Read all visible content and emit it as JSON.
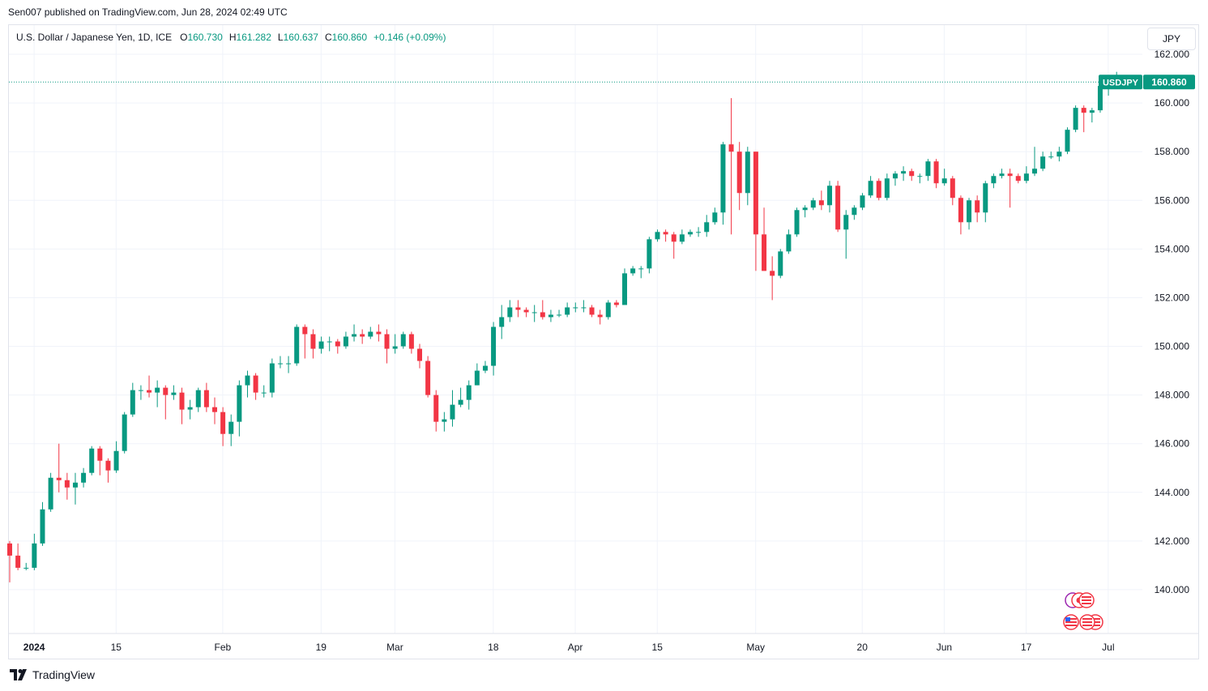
{
  "header": {
    "published": "Sen007 published on TradingView.com, Jun 28, 2024 02:49 UTC"
  },
  "legend": {
    "symbol": "U.S. Dollar / Japanese Yen, 1D, ICE",
    "o_label": "O",
    "o_value": "160.730",
    "h_label": "H",
    "h_value": "161.282",
    "l_label": "L",
    "l_value": "160.637",
    "c_label": "C",
    "c_value": "160.860",
    "change": "+0.146 (+0.09%)"
  },
  "currency_button": "JPY",
  "price_tag": {
    "symbol": "USDJPY",
    "price": "160.860"
  },
  "brand": {
    "name": "TradingView"
  },
  "colors": {
    "up": "#089981",
    "down": "#f23645",
    "grid": "#f0f3fa",
    "text": "#131722"
  },
  "chart_data": {
    "type": "candlestick",
    "title": "U.S. Dollar / Japanese Yen, 1D, ICE",
    "ylim": [
      138.2,
      163.2
    ],
    "y_ticks": [
      "140.000",
      "142.000",
      "144.000",
      "146.000",
      "148.000",
      "150.000",
      "152.000",
      "154.000",
      "156.000",
      "158.000",
      "160.000",
      "162.000"
    ],
    "x_ticks": [
      {
        "label": "2024",
        "bold": true,
        "index": 1
      },
      {
        "label": "15",
        "index": 11
      },
      {
        "label": "Feb",
        "index": 24
      },
      {
        "label": "19",
        "index": 36
      },
      {
        "label": "Mar",
        "index": 45
      },
      {
        "label": "18",
        "index": 57
      },
      {
        "label": "Apr",
        "index": 67
      },
      {
        "label": "15",
        "index": 77
      },
      {
        "label": "May",
        "index": 89
      },
      {
        "label": "20",
        "index": 102
      },
      {
        "label": "Jun",
        "index": 112
      },
      {
        "label": "17",
        "index": 122
      },
      {
        "label": "Jul",
        "index": 132
      }
    ],
    "last_price": 160.86,
    "candles": [
      [
        141.9,
        141.4,
        142.0,
        140.3
      ],
      [
        141.4,
        140.9,
        141.9,
        140.8
      ],
      [
        140.9,
        140.9,
        141.1,
        140.8
      ],
      [
        140.9,
        141.9,
        142.3,
        140.8
      ],
      [
        141.9,
        143.3,
        143.6,
        141.8
      ],
      [
        143.3,
        144.6,
        144.8,
        143.2
      ],
      [
        144.6,
        144.5,
        146.0,
        144.0
      ],
      [
        144.5,
        144.2,
        144.8,
        143.7
      ],
      [
        144.2,
        144.4,
        144.8,
        143.5
      ],
      [
        144.4,
        144.8,
        145.0,
        144.2
      ],
      [
        144.8,
        145.8,
        145.9,
        144.7
      ],
      [
        145.8,
        145.3,
        145.9,
        144.7
      ],
      [
        145.3,
        144.9,
        145.4,
        144.4
      ],
      [
        144.9,
        145.7,
        146.1,
        144.8
      ],
      [
        145.7,
        147.2,
        147.3,
        145.6
      ],
      [
        147.2,
        148.2,
        148.5,
        147.1
      ],
      [
        148.2,
        148.2,
        148.4,
        147.8
      ],
      [
        148.2,
        148.1,
        148.8,
        147.9
      ],
      [
        148.1,
        148.3,
        148.6,
        147.5
      ],
      [
        148.3,
        148.0,
        148.4,
        147.0
      ],
      [
        148.0,
        148.1,
        148.4,
        147.8
      ],
      [
        148.1,
        147.4,
        148.3,
        146.8
      ],
      [
        147.4,
        147.5,
        147.8,
        147.0
      ],
      [
        147.5,
        148.2,
        148.3,
        147.3
      ],
      [
        148.2,
        147.5,
        148.5,
        147.3
      ],
      [
        147.5,
        147.3,
        147.9,
        146.8
      ],
      [
        147.3,
        146.4,
        147.5,
        145.9
      ],
      [
        146.4,
        146.9,
        147.2,
        145.9
      ],
      [
        146.9,
        148.4,
        148.6,
        146.3
      ],
      [
        148.4,
        148.8,
        149.0,
        147.9
      ],
      [
        148.8,
        148.1,
        148.9,
        147.8
      ],
      [
        148.1,
        148.1,
        148.4,
        147.9
      ],
      [
        148.1,
        149.3,
        149.5,
        147.9
      ],
      [
        149.3,
        149.3,
        149.6,
        149.1
      ],
      [
        149.3,
        149.3,
        149.6,
        148.9
      ],
      [
        149.3,
        150.8,
        150.9,
        149.2
      ],
      [
        150.8,
        150.5,
        150.9,
        149.5
      ],
      [
        150.5,
        149.9,
        150.7,
        149.5
      ],
      [
        149.9,
        150.2,
        150.4,
        149.7
      ],
      [
        150.2,
        150.2,
        150.4,
        149.8
      ],
      [
        150.2,
        150.0,
        150.3,
        149.7
      ],
      [
        150.0,
        150.4,
        150.6,
        149.9
      ],
      [
        150.4,
        150.5,
        150.9,
        150.2
      ],
      [
        150.5,
        150.4,
        150.7,
        150.1
      ],
      [
        150.4,
        150.6,
        150.8,
        150.3
      ],
      [
        150.6,
        150.5,
        150.9,
        150.2
      ],
      [
        150.5,
        149.9,
        150.7,
        149.3
      ],
      [
        149.9,
        150.0,
        150.5,
        149.7
      ],
      [
        150.0,
        150.5,
        150.6,
        149.9
      ],
      [
        150.5,
        149.9,
        150.6,
        149.7
      ],
      [
        149.9,
        149.4,
        150.1,
        149.1
      ],
      [
        149.4,
        148.0,
        149.6,
        147.9
      ],
      [
        148.0,
        146.9,
        148.2,
        146.5
      ],
      [
        146.9,
        147.0,
        147.3,
        146.5
      ],
      [
        147.0,
        147.6,
        148.2,
        146.7
      ],
      [
        147.6,
        147.8,
        148.3,
        147.5
      ],
      [
        147.8,
        148.4,
        148.6,
        147.4
      ],
      [
        148.4,
        149.0,
        149.3,
        148.4
      ],
      [
        149.0,
        149.2,
        149.4,
        148.9
      ],
      [
        149.2,
        150.8,
        151.0,
        148.8
      ],
      [
        150.8,
        151.2,
        151.7,
        150.3
      ],
      [
        151.2,
        151.6,
        151.9,
        151.0
      ],
      [
        151.6,
        151.5,
        151.9,
        151.2
      ],
      [
        151.5,
        151.4,
        151.6,
        151.2
      ],
      [
        151.4,
        151.4,
        151.7,
        151.0
      ],
      [
        151.4,
        151.2,
        151.9,
        151.1
      ],
      [
        151.2,
        151.3,
        151.5,
        151.0
      ],
      [
        151.3,
        151.3,
        151.5,
        151.2
      ],
      [
        151.3,
        151.6,
        151.8,
        151.2
      ],
      [
        151.6,
        151.6,
        151.8,
        151.4
      ],
      [
        151.6,
        151.6,
        151.9,
        151.4
      ],
      [
        151.6,
        151.3,
        151.7,
        151.2
      ],
      [
        151.3,
        151.2,
        151.5,
        150.9
      ],
      [
        151.2,
        151.8,
        151.9,
        151.1
      ],
      [
        151.8,
        151.7,
        151.9,
        151.6
      ],
      [
        151.7,
        153.0,
        153.2,
        151.7
      ],
      [
        153.0,
        153.2,
        153.3,
        152.9
      ],
      [
        153.2,
        153.2,
        153.3,
        152.8
      ],
      [
        153.2,
        154.4,
        154.5,
        153.0
      ],
      [
        154.4,
        154.7,
        154.8,
        154.3
      ],
      [
        154.7,
        154.6,
        154.8,
        154.3
      ],
      [
        154.6,
        154.3,
        154.7,
        153.6
      ],
      [
        154.3,
        154.6,
        154.8,
        154.2
      ],
      [
        154.6,
        154.7,
        154.8,
        154.5
      ],
      [
        154.7,
        154.7,
        154.9,
        154.5
      ],
      [
        154.7,
        155.1,
        155.4,
        154.5
      ],
      [
        155.1,
        155.5,
        155.7,
        155.0
      ],
      [
        155.5,
        158.3,
        158.4,
        155.0
      ],
      [
        158.3,
        158.0,
        160.2,
        154.6
      ],
      [
        158.0,
        156.3,
        158.4,
        155.6
      ],
      [
        156.3,
        158.0,
        158.2,
        155.8
      ],
      [
        158.0,
        154.6,
        158.0,
        153.1
      ],
      [
        154.6,
        153.1,
        155.7,
        153.1
      ],
      [
        153.1,
        152.9,
        153.7,
        151.9
      ],
      [
        152.9,
        153.9,
        154.0,
        152.8
      ],
      [
        153.9,
        154.6,
        154.8,
        153.8
      ],
      [
        154.6,
        155.6,
        155.7,
        154.5
      ],
      [
        155.6,
        155.7,
        155.8,
        155.3
      ],
      [
        155.7,
        156.0,
        156.1,
        155.6
      ],
      [
        156.0,
        155.8,
        156.4,
        155.6
      ],
      [
        155.8,
        156.6,
        156.8,
        155.5
      ],
      [
        156.6,
        154.8,
        156.8,
        154.7
      ],
      [
        154.8,
        155.4,
        155.6,
        153.6
      ],
      [
        155.4,
        155.7,
        155.8,
        155.2
      ],
      [
        155.7,
        156.2,
        156.3,
        155.6
      ],
      [
        156.2,
        156.8,
        157.0,
        156.1
      ],
      [
        156.8,
        156.1,
        156.9,
        156.0
      ],
      [
        156.1,
        156.9,
        157.1,
        156.0
      ],
      [
        156.9,
        157.1,
        157.2,
        156.6
      ],
      [
        157.1,
        157.2,
        157.4,
        156.8
      ],
      [
        157.2,
        157.0,
        157.3,
        156.8
      ],
      [
        157.0,
        157.0,
        157.1,
        156.7
      ],
      [
        157.0,
        157.6,
        157.7,
        156.8
      ],
      [
        157.6,
        156.7,
        157.7,
        156.5
      ],
      [
        156.7,
        156.9,
        157.3,
        156.6
      ],
      [
        156.9,
        156.1,
        157.0,
        155.8
      ],
      [
        156.1,
        155.1,
        156.2,
        154.6
      ],
      [
        155.1,
        156.0,
        156.1,
        154.8
      ],
      [
        156.0,
        155.5,
        156.2,
        155.1
      ],
      [
        155.5,
        156.7,
        156.8,
        155.1
      ],
      [
        156.7,
        157.0,
        157.1,
        156.5
      ],
      [
        157.0,
        157.1,
        157.3,
        156.9
      ],
      [
        157.1,
        157.0,
        157.3,
        155.7
      ],
      [
        157.0,
        156.8,
        157.1,
        156.7
      ],
      [
        156.8,
        157.1,
        157.4,
        156.7
      ],
      [
        157.1,
        157.3,
        158.2,
        157.0
      ],
      [
        157.3,
        157.8,
        158.0,
        157.2
      ],
      [
        157.8,
        157.8,
        158.0,
        157.7
      ],
      [
        157.8,
        158.0,
        158.2,
        157.6
      ],
      [
        158.0,
        158.9,
        159.0,
        157.9
      ],
      [
        158.9,
        159.8,
        159.9,
        158.8
      ],
      [
        159.8,
        159.6,
        159.9,
        158.8
      ],
      [
        159.6,
        159.7,
        159.8,
        159.2
      ],
      [
        159.7,
        160.7,
        160.9,
        159.6
      ],
      [
        160.7,
        160.7,
        160.8,
        160.3
      ],
      [
        160.73,
        160.86,
        161.28,
        160.64
      ]
    ]
  }
}
